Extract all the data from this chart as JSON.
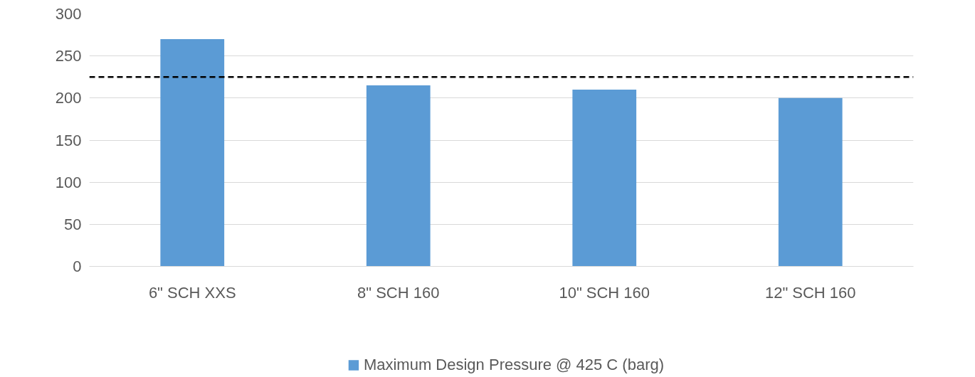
{
  "chart_data": {
    "type": "bar",
    "categories": [
      "6\" SCH XXS",
      "8\" SCH 160",
      "10\" SCH 160",
      "12\" SCH 160"
    ],
    "series": [
      {
        "name": "Maximum Design Pressure @ 425 C (barg)",
        "color": "#5b9bd5",
        "values": [
          270,
          215,
          210,
          200
        ]
      }
    ],
    "ylim": [
      0,
      300
    ],
    "yticks": [
      0,
      50,
      100,
      150,
      200,
      250,
      300
    ],
    "ref_lines": [
      {
        "axis": "y",
        "value": 225,
        "color": "#000000",
        "line_style": "dashed"
      }
    ],
    "grid": "y",
    "legend": "bottom"
  }
}
